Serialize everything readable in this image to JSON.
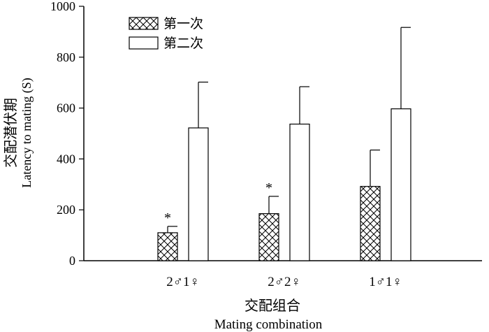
{
  "chart_data": {
    "type": "bar",
    "categories": [
      "2♂1♀",
      "2♂2♀",
      "1♂1♀"
    ],
    "series": [
      {
        "name": "第一次",
        "values": [
          110,
          185,
          292
        ],
        "errors": [
          25,
          68,
          143
        ],
        "pattern": "crosshatch",
        "sig": [
          "*",
          "*",
          ""
        ]
      },
      {
        "name": "第二次",
        "values": [
          522,
          537,
          597
        ],
        "errors": [
          180,
          147,
          320
        ],
        "pattern": "empty",
        "sig": [
          "",
          "",
          ""
        ]
      }
    ],
    "ylim": [
      0,
      1000
    ],
    "yticks": [
      0,
      200,
      400,
      600,
      800,
      1000
    ],
    "ylabel_cn": "交配潜伏期",
    "ylabel_en": "Latency to mating (S)",
    "xlabel_cn": "交配组合",
    "xlabel_en": "Mating combination",
    "legend_position": "top-left",
    "grid": false,
    "colors": {
      "bar_fill": "#ffffff",
      "stroke": "#000000"
    }
  }
}
